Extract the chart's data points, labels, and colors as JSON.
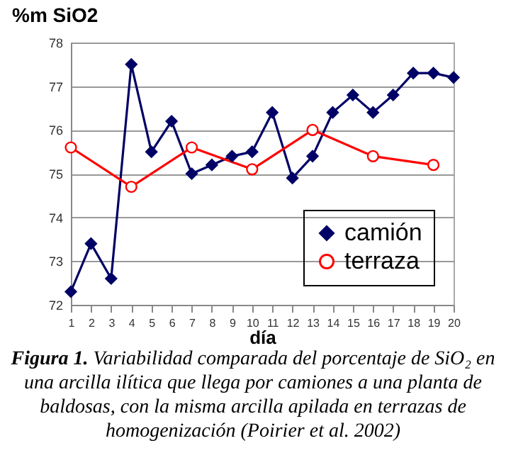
{
  "chart_data": {
    "type": "line",
    "ylabel": "%m SiO2",
    "xlabel": "día",
    "annotations": [
      "Figura 1.",
      "Variabilidad comparada del porcentaje de SiO₂ en una arcilla ilítica que llega por camiones a una planta de baldosas, con la misma arcilla apilada en terrazas de homogenización (Poirier et al. 2002)"
    ],
    "x": [
      1,
      2,
      3,
      4,
      5,
      6,
      7,
      8,
      9,
      10,
      11,
      12,
      13,
      14,
      15,
      16,
      17,
      18,
      19,
      20
    ],
    "series": [
      {
        "name": "camión",
        "color": "#000066",
        "marker": "diamond",
        "values": [
          72.3,
          73.4,
          72.6,
          77.5,
          75.5,
          76.2,
          75.0,
          75.2,
          75.4,
          75.5,
          76.4,
          74.9,
          75.4,
          76.4,
          76.8,
          76.4,
          76.8,
          77.3,
          77.3,
          77.2
        ]
      },
      {
        "name": "terraza",
        "color": "#ff0000",
        "marker": "circle",
        "x": [
          1,
          4,
          7,
          10,
          13,
          16,
          19
        ],
        "values": [
          75.6,
          74.7,
          75.6,
          75.1,
          76.0,
          75.4,
          75.2
        ]
      }
    ],
    "xlim": [
      1,
      20
    ],
    "xticks": [
      1,
      2,
      3,
      4,
      5,
      6,
      7,
      8,
      9,
      10,
      11,
      12,
      13,
      14,
      15,
      16,
      17,
      18,
      19,
      20
    ],
    "ylim": [
      72,
      78
    ],
    "yticks": [
      72,
      73,
      74,
      75,
      76,
      77,
      78
    ],
    "grid": "y",
    "legend": "bottom right",
    "line_style": "solid"
  }
}
